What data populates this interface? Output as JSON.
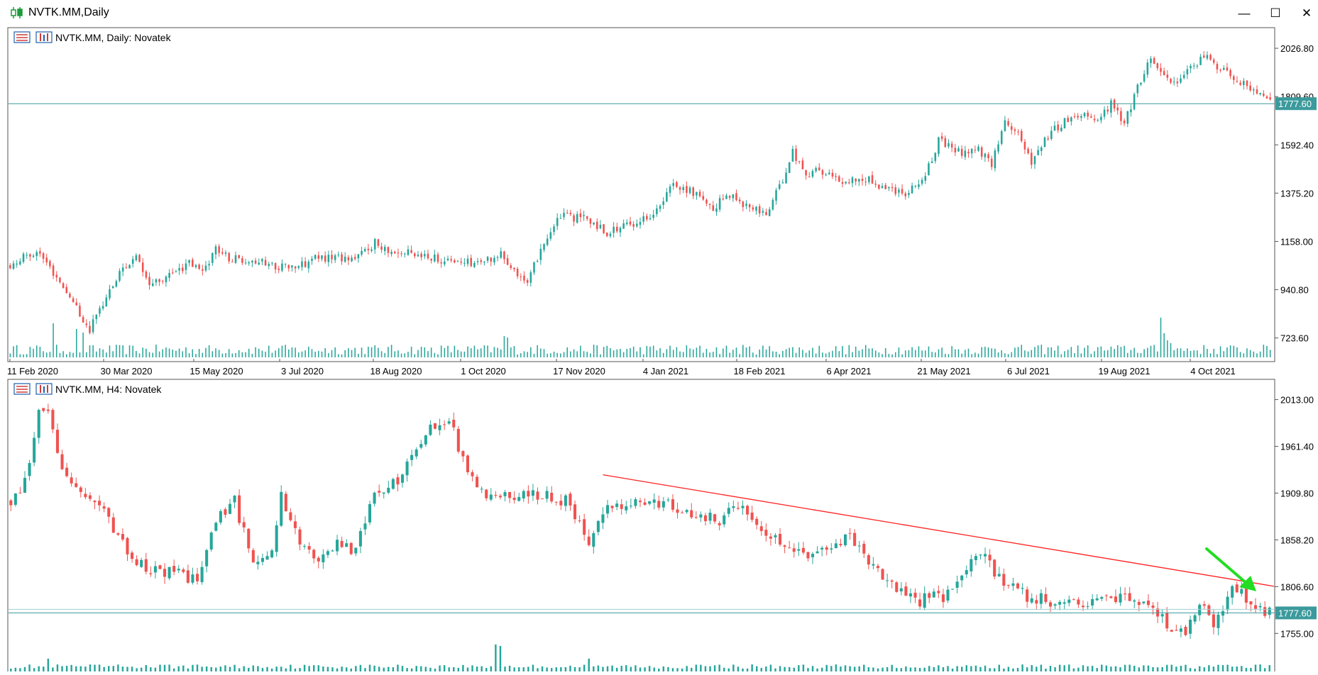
{
  "window": {
    "title": "NVTK.MM,Daily",
    "icon": "candlestick-chart-icon",
    "controls": [
      "minimize-icon",
      "maximize-icon",
      "close-icon"
    ]
  },
  "colors": {
    "bull": "#26a69a",
    "bear": "#ef5350",
    "price_line": "#3b9a9c",
    "trendline": "#ff2020",
    "arrow": "#22dd22",
    "volume": "#26a69a"
  },
  "chart_data": [
    {
      "type": "candlestick",
      "title": "NVTK.MM, Daily:  Novatek",
      "timeframe": "Daily",
      "y_ticks": [
        "2026.80",
        "1809.60",
        "1592.40",
        "1375.20",
        "1158.00",
        "940.80",
        "723.60"
      ],
      "ylim": [
        630,
        2110
      ],
      "x_ticks": [
        "11 Feb 2020",
        "30 Mar 2020",
        "15 May 2020",
        "3 Jul 2020",
        "18 Aug 2020",
        "1 Oct 2020",
        "17 Nov 2020",
        "4 Jan 2021",
        "18 Feb 2021",
        "6 Apr 2021",
        "21 May 2021",
        "6 Jul 2021",
        "19 Aug 2021",
        "4 Oct 2021"
      ],
      "current_price": "1777.60",
      "anchors": [
        [
          0,
          1050
        ],
        [
          8,
          1120
        ],
        [
          14,
          1000
        ],
        [
          20,
          860
        ],
        [
          24,
          760
        ],
        [
          28,
          880
        ],
        [
          34,
          1040
        ],
        [
          38,
          1080
        ],
        [
          42,
          960
        ],
        [
          48,
          1000
        ],
        [
          54,
          1060
        ],
        [
          58,
          1020
        ],
        [
          62,
          1130
        ],
        [
          66,
          1080
        ],
        [
          72,
          1080
        ],
        [
          80,
          1050
        ],
        [
          86,
          1040
        ],
        [
          92,
          1080
        ],
        [
          98,
          1090
        ],
        [
          104,
          1080
        ],
        [
          110,
          1150
        ],
        [
          116,
          1110
        ],
        [
          124,
          1100
        ],
        [
          132,
          1070
        ],
        [
          140,
          1060
        ],
        [
          148,
          1100
        ],
        [
          152,
          1040
        ],
        [
          156,
          960
        ],
        [
          160,
          1130
        ],
        [
          166,
          1270
        ],
        [
          174,
          1260
        ],
        [
          180,
          1200
        ],
        [
          190,
          1250
        ],
        [
          196,
          1310
        ],
        [
          200,
          1420
        ],
        [
          206,
          1380
        ],
        [
          212,
          1290
        ],
        [
          216,
          1380
        ],
        [
          222,
          1320
        ],
        [
          228,
          1280
        ],
        [
          232,
          1400
        ],
        [
          236,
          1560
        ],
        [
          240,
          1460
        ],
        [
          244,
          1480
        ],
        [
          250,
          1430
        ],
        [
          258,
          1440
        ],
        [
          264,
          1400
        ],
        [
          270,
          1380
        ],
        [
          276,
          1450
        ],
        [
          280,
          1610
        ],
        [
          286,
          1560
        ],
        [
          292,
          1570
        ],
        [
          296,
          1500
        ],
        [
          300,
          1710
        ],
        [
          304,
          1640
        ],
        [
          308,
          1520
        ],
        [
          312,
          1620
        ],
        [
          318,
          1700
        ],
        [
          324,
          1740
        ],
        [
          328,
          1700
        ],
        [
          332,
          1780
        ],
        [
          336,
          1690
        ],
        [
          340,
          1850
        ],
        [
          344,
          1990
        ],
        [
          348,
          1900
        ],
        [
          352,
          1870
        ],
        [
          356,
          1930
        ],
        [
          360,
          1990
        ],
        [
          366,
          1930
        ],
        [
          372,
          1870
        ],
        [
          378,
          1800
        ],
        [
          380,
          1780
        ]
      ],
      "volume": {
        "baseline_bars": "daily volume bars",
        "spike_near": "late Sep 2021"
      }
    },
    {
      "type": "candlestick",
      "title": "NVTK.MM, H4:  Novatek",
      "timeframe": "H4",
      "y_ticks": [
        "2013.00",
        "1961.40",
        "1909.80",
        "1858.20",
        "1806.60",
        "1755.00"
      ],
      "ylim": [
        1713,
        2033
      ],
      "current_price": "1777.60",
      "anchors": [
        [
          0,
          1900
        ],
        [
          3,
          1920
        ],
        [
          6,
          1995
        ],
        [
          8,
          2005
        ],
        [
          10,
          1950
        ],
        [
          14,
          1910
        ],
        [
          18,
          1905
        ],
        [
          22,
          1870
        ],
        [
          26,
          1840
        ],
        [
          30,
          1825
        ],
        [
          36,
          1820
        ],
        [
          40,
          1815
        ],
        [
          44,
          1880
        ],
        [
          48,
          1900
        ],
        [
          52,
          1830
        ],
        [
          56,
          1850
        ],
        [
          58,
          1910
        ],
        [
          62,
          1850
        ],
        [
          66,
          1840
        ],
        [
          70,
          1855
        ],
        [
          74,
          1845
        ],
        [
          78,
          1915
        ],
        [
          82,
          1920
        ],
        [
          86,
          1945
        ],
        [
          90,
          1980
        ],
        [
          94,
          1995
        ],
        [
          98,
          1930
        ],
        [
          102,
          1910
        ],
        [
          106,
          1905
        ],
        [
          110,
          1910
        ],
        [
          116,
          1905
        ],
        [
          120,
          1900
        ],
        [
          124,
          1850
        ],
        [
          126,
          1885
        ],
        [
          130,
          1895
        ],
        [
          136,
          1900
        ],
        [
          142,
          1895
        ],
        [
          148,
          1885
        ],
        [
          152,
          1880
        ],
        [
          156,
          1895
        ],
        [
          160,
          1875
        ],
        [
          166,
          1855
        ],
        [
          170,
          1840
        ],
        [
          176,
          1850
        ],
        [
          180,
          1860
        ],
        [
          184,
          1830
        ],
        [
          188,
          1815
        ],
        [
          194,
          1790
        ],
        [
          198,
          1795
        ],
        [
          200,
          1790
        ],
        [
          204,
          1820
        ],
        [
          208,
          1845
        ],
        [
          212,
          1815
        ],
        [
          218,
          1795
        ],
        [
          224,
          1790
        ],
        [
          230,
          1785
        ],
        [
          236,
          1795
        ],
        [
          240,
          1790
        ],
        [
          244,
          1785
        ],
        [
          248,
          1765
        ],
        [
          252,
          1760
        ],
        [
          256,
          1790
        ],
        [
          258,
          1760
        ],
        [
          262,
          1805
        ],
        [
          266,
          1790
        ],
        [
          270,
          1778
        ]
      ],
      "trendline": {
        "from_index": 127,
        "from_price": 1930,
        "to_index": 270,
        "to_price": 1807
      },
      "arrow": {
        "description": "green arrow pointing down-right toward trendline break"
      }
    }
  ]
}
